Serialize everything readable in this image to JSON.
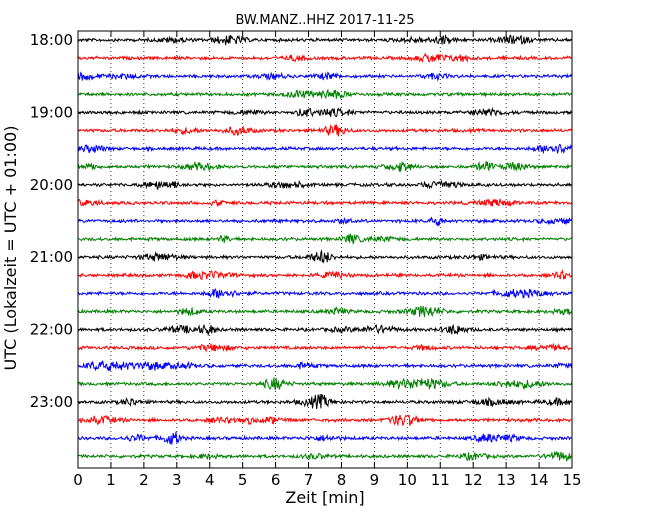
{
  "chart_data": {
    "type": "line",
    "title": "BW.MANZ..HHZ 2017-11-25",
    "xlabel": "Zeit  [min]",
    "ylabel": "UTC (Lokalzeit = UTC + 01:00)",
    "xlim": [
      0,
      15
    ],
    "x_ticks": [
      0,
      1,
      2,
      3,
      4,
      5,
      6,
      7,
      8,
      9,
      10,
      11,
      12,
      13,
      14,
      15
    ],
    "y_tick_labels": [
      "18:00",
      "19:00",
      "20:00",
      "21:00",
      "22:00",
      "23:00"
    ],
    "traces_per_hour": 4,
    "trace_count": 24,
    "trace_colors": [
      "#000000",
      "#ff0000",
      "#0000ff",
      "#008000"
    ],
    "grid": "vertical dotted lines at each minute",
    "description_of_series": "Seismogram traces (amplitude vs. time); 15-minute rows from 18:00 to 23:45 UTC"
  }
}
